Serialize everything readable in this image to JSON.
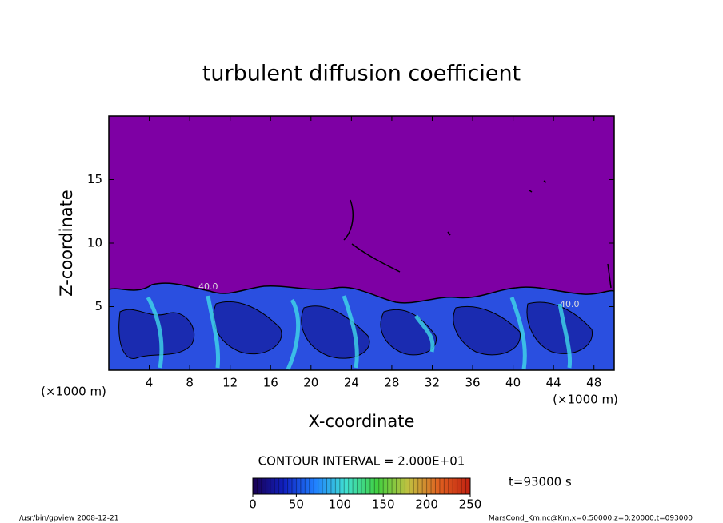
{
  "chart_data": {
    "type": "contour",
    "title": "turbulent diffusion coefficient",
    "xlabel": "X-coordinate",
    "ylabel": "Z-coordinate",
    "x_unit_label": "(×1000 m)",
    "xlim": [
      0,
      50
    ],
    "xticks": [
      4,
      8,
      12,
      16,
      20,
      24,
      28,
      32,
      36,
      40,
      44,
      48
    ],
    "ylim": [
      0,
      20
    ],
    "yticks": [
      5,
      10,
      15
    ],
    "contour_labels": [
      "40.0",
      "40.0"
    ],
    "contour_interval_label": "CONTOUR INTERVAL = 2.000E+01",
    "time_label": "t=93000 s",
    "colorbar": {
      "lim": [
        0,
        250
      ],
      "ticks": [
        0,
        50,
        100,
        150,
        200,
        250
      ],
      "colors": [
        "#1a0050",
        "#1020c0",
        "#2080ff",
        "#40e0d0",
        "#40d040",
        "#c0c040",
        "#e06020",
        "#c02010"
      ]
    },
    "footer_left": "/usr/bin/gpview   2008-12-21",
    "footer_right": "MarsCond_Km.nc@Km,x=0:50000,z=0:20000,t=093000"
  }
}
